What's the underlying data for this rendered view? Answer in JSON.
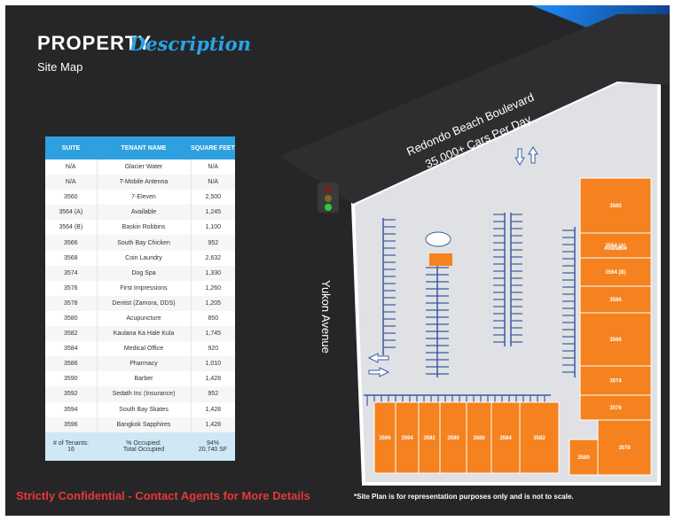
{
  "header": {
    "title_bold": "PROPERTY",
    "title_script": "Description",
    "subtitle": "Site Map"
  },
  "table": {
    "headers": [
      "SUITE",
      "TENANT NAME",
      "SQUARE FEET"
    ],
    "rows": [
      [
        "N/A",
        "Glacier Water",
        "N/A"
      ],
      [
        "N/A",
        "T-Mobile Antenna",
        "N/A"
      ],
      [
        "3560",
        "7-Eleven",
        "2,500"
      ],
      [
        "3564 (A)",
        "Available",
        "1,245"
      ],
      [
        "3564 (B)",
        "Baskin Robbins",
        "1,100"
      ],
      [
        "3566",
        "South Bay Chicken",
        "952"
      ],
      [
        "3568",
        "Coin Laundry",
        "2,632"
      ],
      [
        "3574",
        "Dog Spa",
        "1,330"
      ],
      [
        "3576",
        "First Impressions",
        "1,260"
      ],
      [
        "3578",
        "Dentist (Zamora, DDS)",
        "1,205"
      ],
      [
        "3580",
        "Acupuncture",
        "850"
      ],
      [
        "3582",
        "Kaulana Ka Hale Kula",
        "1,745"
      ],
      [
        "3584",
        "Medical Office",
        "920"
      ],
      [
        "3586",
        "Pharmacy",
        "1,010"
      ],
      [
        "3590",
        "Barber",
        "1,428"
      ],
      [
        "3592",
        "Sedath Inc (Insurance)",
        "952"
      ],
      [
        "3594",
        "South Bay Skates",
        "1,428"
      ],
      [
        "3596",
        "Bangkok Sapphires",
        "1,428"
      ]
    ],
    "summary": {
      "tenants_label": "# of Tenants:",
      "tenants_value": "16",
      "occupied_label": "% Occupied:",
      "total_label": "Total Occupied",
      "occupied_pct": "94%",
      "total_sf": "20,740 SF"
    }
  },
  "map": {
    "road_north": "Redondo Beach Boulevard",
    "traffic_count": "35,000+ Cars Per Day",
    "road_west": "Yukon Avenue",
    "units_east": [
      "3560",
      "3564 (A)",
      "Available",
      "3564 (B)",
      "3566",
      "3568",
      "3574",
      "3576",
      "3578",
      "3580"
    ],
    "units_south": [
      "3596",
      "3594",
      "3592",
      "3590",
      "3586",
      "3584",
      "3582"
    ],
    "unit_color": "#f5821f"
  },
  "footer": {
    "confidential": "Strictly Confidential - Contact Agents for More Details",
    "disclaimer": "*Site Plan is for representation purposes only and is not to scale."
  }
}
